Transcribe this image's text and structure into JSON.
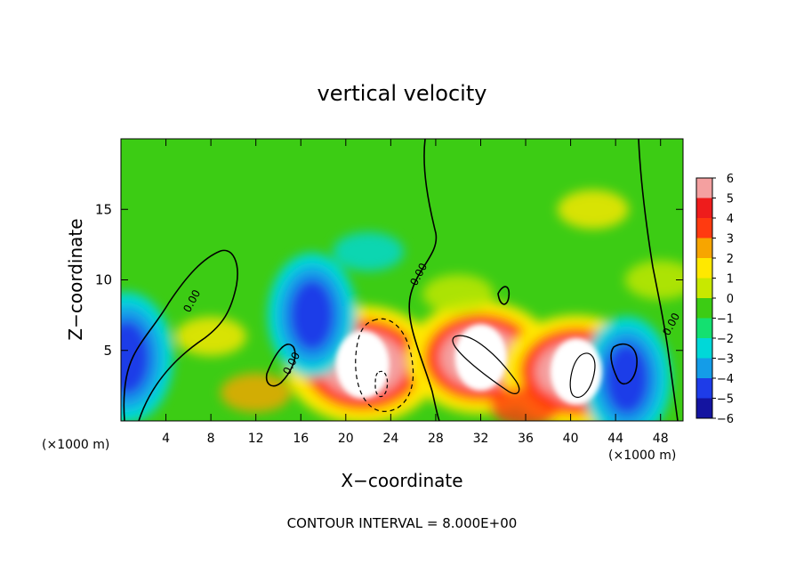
{
  "chart_data": {
    "type": "heatmap",
    "title": "vertical velocity",
    "xlabel": "X−coordinate",
    "ylabel": "Z−coordinate",
    "x_unit_left": "(×1000 m)",
    "x_unit_right": "(×1000 m)",
    "footer": "CONTOUR INTERVAL = 8.000E+00",
    "xlim": [
      0,
      50
    ],
    "ylim": [
      0,
      20
    ],
    "x_ticks": [
      4,
      8,
      12,
      16,
      20,
      24,
      28,
      32,
      36,
      40,
      44,
      48
    ],
    "y_ticks": [
      5,
      10,
      15
    ],
    "contour_labels": [
      "0.00",
      "0.00",
      "0.00",
      "0.00"
    ],
    "colorbar": {
      "levels": [
        6,
        5,
        4,
        3,
        2,
        1,
        0,
        -1,
        -2,
        -3,
        -4,
        -5,
        -6
      ],
      "labels": [
        "6",
        "5",
        "4",
        "3",
        "2",
        "1",
        "0",
        "−1",
        "−2",
        "−3",
        "−4",
        "−5",
        "−6"
      ],
      "colors": [
        "#f4a0a0",
        "#ee1c1c",
        "#ff3a10",
        "#f7a500",
        "#ffe800",
        "#c8e800",
        "#3ccc14",
        "#14e070",
        "#00d8d8",
        "#149ce8",
        "#1e3ce8",
        "#1414a0",
        "#780ab4"
      ]
    },
    "features": [
      {
        "name": "background",
        "x": 25,
        "z": 10,
        "value": 0
      },
      {
        "name": "updraft-core-west",
        "x": 21.5,
        "z": 4,
        "value": 8
      },
      {
        "name": "updraft-core-center",
        "x": 32,
        "z": 4.5,
        "value": 7
      },
      {
        "name": "updraft-core-east",
        "x": 40.5,
        "z": 3.5,
        "value": 7
      },
      {
        "name": "downdraft-west",
        "x": 17,
        "z": 7.5,
        "value": -4
      },
      {
        "name": "downdraft-edge",
        "x": 0.5,
        "z": 4.5,
        "value": -5
      },
      {
        "name": "downdraft-east",
        "x": 45,
        "z": 3,
        "value": -4
      }
    ]
  }
}
